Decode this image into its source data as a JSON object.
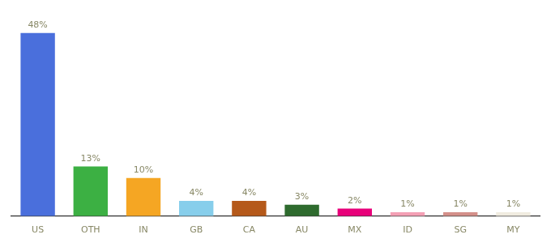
{
  "chart_data": {
    "type": "bar",
    "categories": [
      "US",
      "OTH",
      "IN",
      "GB",
      "CA",
      "AU",
      "MX",
      "ID",
      "SG",
      "MY"
    ],
    "values": [
      48,
      13,
      10,
      4,
      4,
      3,
      2,
      1,
      1,
      1
    ],
    "value_labels": [
      "48%",
      "13%",
      "10%",
      "4%",
      "4%",
      "3%",
      "2%",
      "1%",
      "1%",
      "1%"
    ],
    "colors": [
      "#4a6fdc",
      "#3cb043",
      "#f5a623",
      "#87ceeb",
      "#b5591a",
      "#2e6b2e",
      "#e8007a",
      "#f4a0b5",
      "#d4908a",
      "#f0ece0"
    ],
    "ylim": [
      0,
      52
    ],
    "grid": false,
    "data_labels": true,
    "tick_labels": "x"
  }
}
